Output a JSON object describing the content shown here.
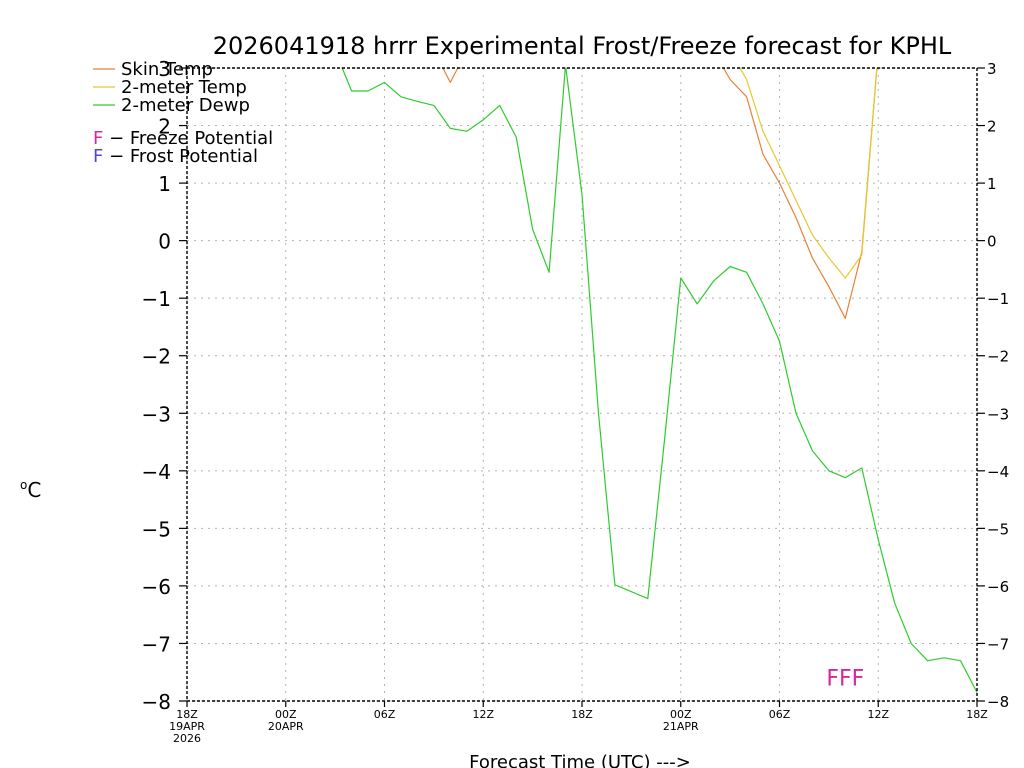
{
  "chart_data": {
    "type": "line",
    "title": "2026041918 hrrr Experimental Frost/Freeze forecast for KPHL",
    "xlabel": "Forecast Time (UTC) --->",
    "ylabel": "oC",
    "ylabel_main": "C",
    "ylabel_sup": "o",
    "ylim": [
      -8,
      3
    ],
    "yticks": [
      -8,
      -7,
      -6,
      -5,
      -4,
      -3,
      -2,
      -1,
      0,
      1,
      2,
      3
    ],
    "ytick_labels": [
      "−8",
      "−7",
      "−6",
      "−5",
      "−4",
      "−3",
      "−2",
      "−1",
      "0",
      "1",
      "2",
      "3"
    ],
    "xlim": [
      0,
      48
    ],
    "x_unit": "forecast hour",
    "xticks": [
      {
        "hour": 0,
        "lines": [
          "18Z",
          "19APR",
          "2026"
        ]
      },
      {
        "hour": 6,
        "lines": [
          "00Z",
          "20APR"
        ]
      },
      {
        "hour": 12,
        "lines": [
          "06Z"
        ]
      },
      {
        "hour": 18,
        "lines": [
          "12Z"
        ]
      },
      {
        "hour": 24,
        "lines": [
          "18Z"
        ]
      },
      {
        "hour": 30,
        "lines": [
          "00Z",
          "21APR"
        ]
      },
      {
        "hour": 36,
        "lines": [
          "06Z"
        ]
      },
      {
        "hour": 42,
        "lines": [
          "12Z"
        ]
      },
      {
        "hour": 48,
        "lines": [
          "18Z"
        ]
      }
    ],
    "grid": true,
    "legend_position": "top-left",
    "legend": [
      {
        "label": "Skin Temp",
        "color": "#e8803a"
      },
      {
        "label": "2-meter Temp",
        "color": "#e8c830"
      },
      {
        "label": "2-meter Dewp",
        "color": "#2ecc2e"
      }
    ],
    "legend_notes": [
      {
        "letter": "F",
        "text": " − Freeze Potential",
        "color": "#d7289b"
      },
      {
        "letter": "F",
        "text": " − Frost Potential",
        "color": "#4a4ad8"
      }
    ],
    "series": [
      {
        "name": "Skin Temp",
        "color": "#e8803a",
        "points": [
          [
            15,
            3.3
          ],
          [
            16,
            2.75
          ],
          [
            17,
            3.3
          ],
          [
            32,
            3.3
          ],
          [
            33,
            2.8
          ],
          [
            34,
            2.5
          ],
          [
            35,
            1.5
          ],
          [
            36,
            1.0
          ],
          [
            37,
            0.4
          ],
          [
            38,
            -0.3
          ],
          [
            39,
            -0.8
          ],
          [
            40,
            -1.35
          ],
          [
            41,
            -0.2
          ],
          [
            42,
            3.3
          ]
        ]
      },
      {
        "name": "2-meter Temp",
        "color": "#e8c830",
        "points": [
          [
            33,
            3.3
          ],
          [
            34,
            2.8
          ],
          [
            35,
            1.9
          ],
          [
            36,
            1.3
          ],
          [
            37,
            0.7
          ],
          [
            38,
            0.1
          ],
          [
            39,
            -0.3
          ],
          [
            40,
            -0.65
          ],
          [
            41,
            -0.25
          ],
          [
            42,
            3.3
          ]
        ]
      },
      {
        "name": "2-meter Dewp",
        "color": "#2ecc2e",
        "points": [
          [
            9,
            3.3
          ],
          [
            10,
            2.6
          ],
          [
            11,
            2.6
          ],
          [
            12,
            2.75
          ],
          [
            13,
            2.5
          ],
          [
            14,
            2.42
          ],
          [
            15,
            2.35
          ],
          [
            16,
            1.95
          ],
          [
            17,
            1.9
          ],
          [
            18,
            2.1
          ],
          [
            19,
            2.35
          ],
          [
            20,
            1.8
          ],
          [
            21,
            0.2
          ],
          [
            22,
            -0.55
          ],
          [
            23,
            3.05
          ],
          [
            24,
            0.8
          ],
          [
            25,
            -3.0
          ],
          [
            26,
            -5.98
          ],
          [
            27,
            -6.1
          ],
          [
            28,
            -6.22
          ],
          [
            29,
            -3.5
          ],
          [
            30,
            -0.65
          ],
          [
            31,
            -1.1
          ],
          [
            32,
            -0.7
          ],
          [
            33,
            -0.45
          ],
          [
            34,
            -0.55
          ],
          [
            35,
            -1.1
          ],
          [
            36,
            -1.75
          ],
          [
            37,
            -3.0
          ],
          [
            38,
            -3.65
          ],
          [
            39,
            -4.0
          ],
          [
            40,
            -4.12
          ],
          [
            41,
            -3.95
          ],
          [
            42,
            -5.2
          ],
          [
            43,
            -6.3
          ],
          [
            44,
            -7.0
          ],
          [
            45,
            -7.3
          ],
          [
            46,
            -7.25
          ],
          [
            47,
            -7.3
          ],
          [
            48,
            -7.85
          ]
        ]
      }
    ],
    "annotations": [
      {
        "text": "FFF",
        "color": "#d7289b",
        "hour": 40,
        "value": -7.7
      }
    ]
  }
}
